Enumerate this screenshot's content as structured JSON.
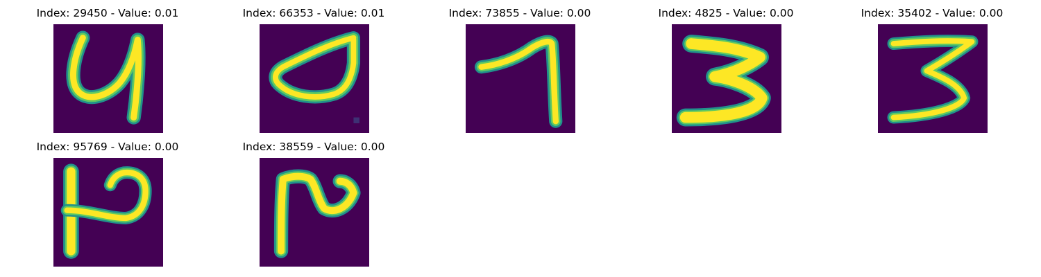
{
  "colors": {
    "background": "#440154",
    "stroke_core": "#fde725",
    "stroke_mid": "#5ec962",
    "stroke_edge": "#21918c",
    "stroke_outer": "#3b528b"
  },
  "panels": [
    {
      "title": "Index: 29450 - Value: 0.01",
      "glyph": "4-like"
    },
    {
      "title": "Index: 66353 - Value: 0.01",
      "glyph": "a-like"
    },
    {
      "title": "Index: 73855 - Value: 0.00",
      "glyph": "7-like"
    },
    {
      "title": "Index: 4825 - Value: 0.00",
      "glyph": "3-like"
    },
    {
      "title": "Index: 35402 - Value: 0.00",
      "glyph": "3-like"
    },
    {
      "title": "Index: 95769 - Value: 0.00",
      "glyph": "p-like"
    },
    {
      "title": "Index: 38559 - Value: 0.00",
      "glyph": "r-like"
    }
  ]
}
